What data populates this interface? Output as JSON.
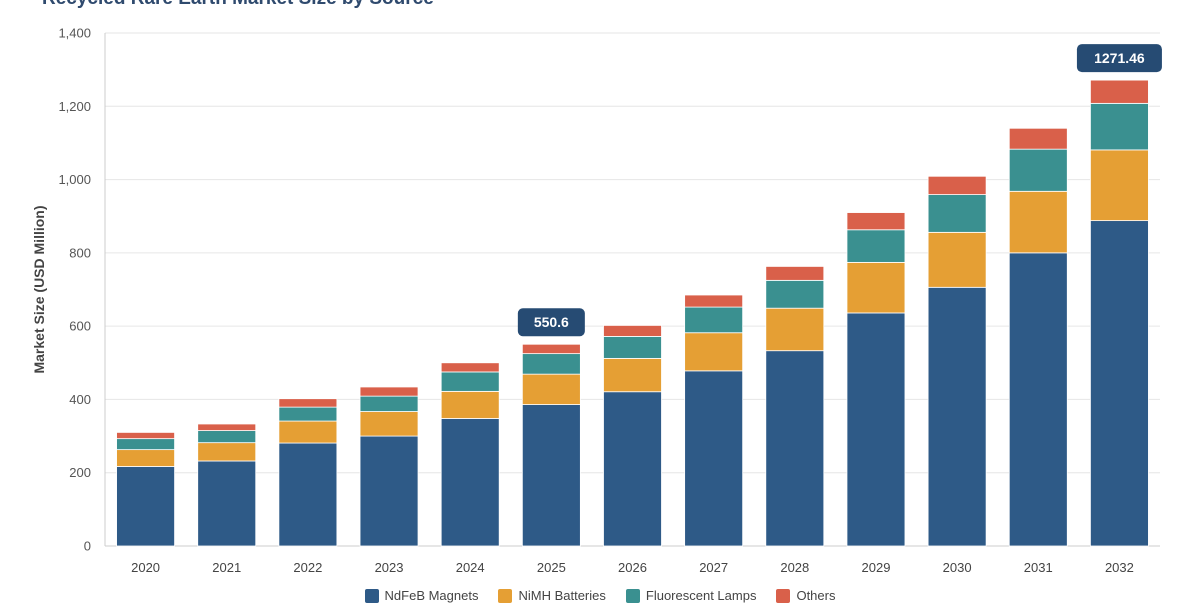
{
  "chart_data": {
    "type": "bar",
    "stacked": true,
    "title": "Recycled Rare Earth Market Size by Source",
    "ylabel": "Market Size (USD Million)",
    "xlabel": "",
    "ylim": [
      0,
      1400
    ],
    "yticks": [
      "0",
      "200",
      "400",
      "600",
      "800",
      "1,000",
      "1,200",
      "1,400"
    ],
    "ytick_values": [
      0,
      200,
      400,
      600,
      800,
      1000,
      1200,
      1400
    ],
    "grid": true,
    "legend_position": "bottom",
    "categories": [
      "2020",
      "2021",
      "2022",
      "2023",
      "2024",
      "2025",
      "2026",
      "2027",
      "2028",
      "2029",
      "2030",
      "2031",
      "2032"
    ],
    "series": [
      {
        "name": "NdFeB Magnets",
        "color": "#2e5a87",
        "values": [
          217,
          232,
          281,
          300,
          348,
          386,
          421,
          478,
          533,
          636,
          706,
          800,
          888
        ]
      },
      {
        "name": "NiMH Batteries",
        "color": "#e59f34",
        "values": [
          46,
          50,
          60,
          67,
          74,
          83,
          91,
          104,
          116,
          138,
          150,
          168,
          193
        ]
      },
      {
        "name": "Fluorescent Lamps",
        "color": "#3a9090",
        "values": [
          30,
          33,
          38,
          42,
          53,
          56,
          60,
          70,
          76,
          89,
          103,
          115,
          127
        ]
      },
      {
        "name": "Others",
        "color": "#d9604a",
        "values": [
          17,
          18,
          23,
          25,
          25,
          25.6,
          30,
          33,
          38,
          47,
          50,
          57,
          63.46
        ]
      }
    ],
    "annotations": [
      {
        "category": "2025",
        "label": "550.6"
      },
      {
        "category": "2032",
        "label": "1271.46"
      }
    ]
  }
}
